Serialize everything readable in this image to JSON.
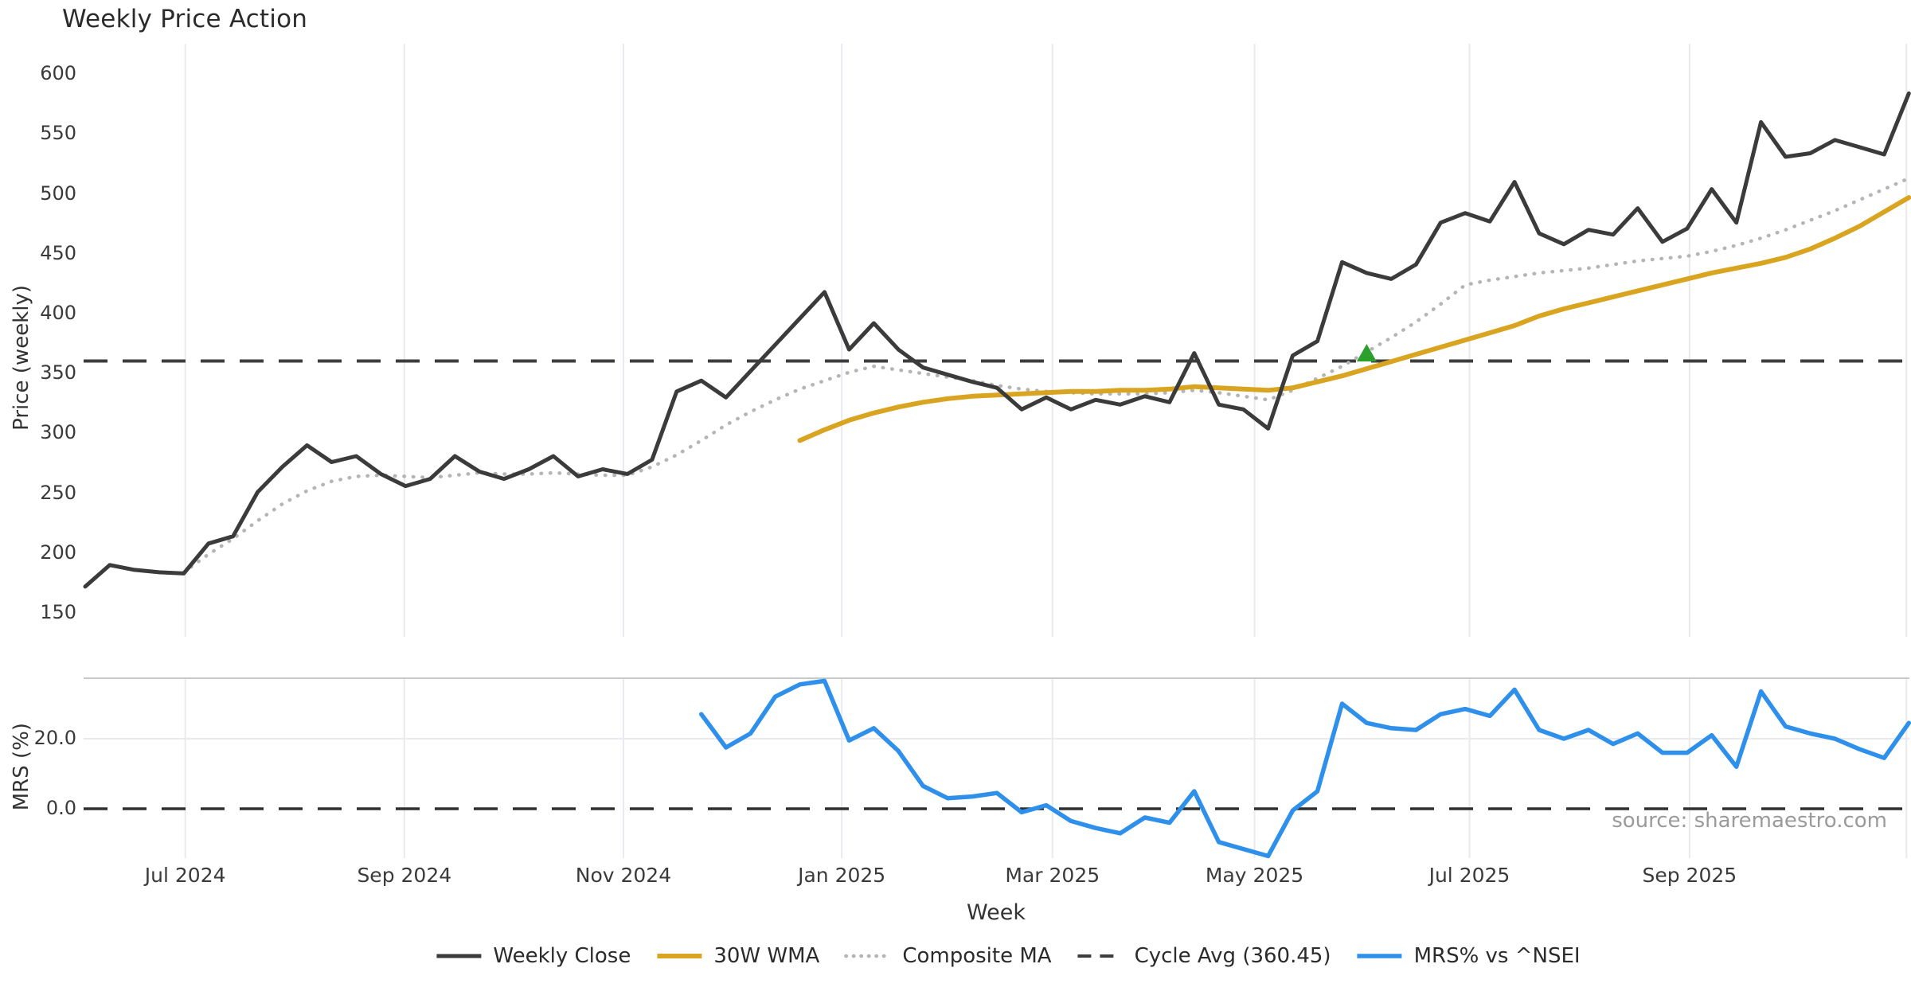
{
  "title": "Weekly Price Action",
  "xlabel": "Week",
  "source_note": "source: sharemaestro.com",
  "colors": {
    "close": "#3b3b3b",
    "wma": "#D9A521",
    "composite": "#b5b5b5",
    "cycle": "#3d3d3d",
    "mrs": "#2E90EA",
    "marker_green": "#2ca02c",
    "grid": "#e9e9f0",
    "spine": "#c9c9c9",
    "zero": "#2f2f2f"
  },
  "legend": {
    "items": [
      {
        "label": "Weekly Close",
        "style": "solid",
        "color_key": "close",
        "width": 5
      },
      {
        "label": "30W WMA",
        "style": "solid",
        "color_key": "wma",
        "width": 6
      },
      {
        "label": "Composite MA",
        "style": "dotted",
        "color_key": "composite",
        "width": 4.5
      },
      {
        "label": "Cycle Avg (360.45)",
        "style": "dashed",
        "color_key": "cycle",
        "width": 4
      },
      {
        "label": "MRS% vs ^NSEI",
        "style": "solid",
        "color_key": "mrs",
        "width": 5.5
      }
    ]
  },
  "chart_data": {
    "type": "line",
    "x_axis": {
      "label": "Week",
      "tick_weeks": [
        4.06,
        12.95,
        21.84,
        30.7,
        39.25,
        47.45,
        56.17,
        65.1,
        73.9
      ],
      "tick_labels": [
        "Jul 2024",
        "Sep 2024",
        "Nov 2024",
        "Jan 2025",
        "Mar 2025",
        "May 2025",
        "Jul 2025",
        "Sep 2025",
        ""
      ],
      "weeks_total": 75
    },
    "price_panel": {
      "ylabel": "Price (weekly)",
      "yticks": [
        600,
        550,
        500,
        450,
        400,
        350,
        300,
        250,
        200,
        150
      ],
      "ylim": [
        127,
        625
      ],
      "cycle_avg": 360.45,
      "series": [
        {
          "name": "Weekly Close",
          "style": "solid",
          "color_key": "close",
          "start_week": 0,
          "values": [
            172,
            190,
            186,
            184,
            183,
            208,
            214,
            251,
            272,
            290,
            276,
            281,
            266,
            256,
            262,
            281,
            268,
            262,
            270,
            281,
            264,
            270,
            266,
            278,
            335,
            344,
            330,
            352,
            374,
            396,
            418,
            370,
            392,
            370,
            355,
            349,
            343,
            338,
            320,
            330,
            320,
            328,
            324,
            331,
            326,
            367,
            324,
            320,
            304,
            365,
            377,
            443,
            434,
            429,
            441,
            476,
            484,
            477,
            510,
            467,
            458,
            470,
            466,
            488,
            460,
            471,
            504,
            476,
            560,
            531,
            534,
            545,
            539,
            533,
            584
          ]
        },
        {
          "name": "30W WMA",
          "style": "solid",
          "color_key": "wma",
          "start_week": 29,
          "values": [
            294,
            303,
            311,
            317,
            322,
            326,
            329,
            331,
            332,
            333,
            334,
            335,
            335,
            336,
            336,
            337,
            339,
            338,
            337,
            336,
            338,
            343,
            348,
            354,
            360,
            366,
            372,
            378,
            384,
            390,
            398,
            404,
            409,
            414,
            419,
            424,
            429,
            434,
            438,
            442,
            447,
            454,
            463,
            473,
            485,
            497
          ]
        },
        {
          "name": "Composite MA",
          "style": "dotted",
          "color_key": "composite",
          "start_week": 4,
          "values": [
            184,
            199,
            212,
            227,
            241,
            252,
            260,
            264,
            265,
            264,
            263,
            265,
            267,
            266,
            266,
            267,
            266,
            265,
            265,
            272,
            282,
            294,
            307,
            318,
            328,
            337,
            344,
            351,
            356,
            353,
            350,
            347,
            344,
            340,
            337,
            335,
            334,
            333,
            333,
            333,
            334,
            336,
            334,
            331,
            328,
            336,
            346,
            356,
            368,
            380,
            393,
            408,
            424,
            428,
            431,
            434,
            436,
            438,
            441,
            444,
            446,
            448,
            452,
            457,
            463,
            470,
            478,
            486,
            495,
            504,
            513
          ]
        }
      ],
      "marker": {
        "shape": "triangle-up",
        "color_key": "marker_green",
        "week": 52,
        "value": 366
      }
    },
    "mrs_panel": {
      "ylabel": "MRS (%)",
      "ytick_labels": [
        "20.0",
        "0.0"
      ],
      "ytick_values": [
        20,
        0
      ],
      "ylim": [
        -14.5,
        37.5
      ],
      "zero_line": 0,
      "series": [
        {
          "name": "MRS% vs ^NSEI",
          "style": "solid",
          "color_key": "mrs",
          "start_week": 25,
          "values": [
            27,
            17.5,
            21.5,
            32,
            35.5,
            36.5,
            19.5,
            23,
            16.5,
            6.5,
            3,
            3.5,
            4.5,
            -1,
            1,
            -3.5,
            -5.5,
            -7,
            -2.5,
            -4,
            5,
            -9.5,
            -11.5,
            -13.5,
            -0.5,
            5,
            30,
            24.5,
            23,
            22.5,
            27,
            28.5,
            26.5,
            34,
            22.5,
            20,
            22.5,
            18.5,
            21.5,
            16,
            16,
            21,
            12,
            33.5,
            23.5,
            21.5,
            20,
            17,
            14.5,
            24.5
          ]
        }
      ]
    }
  }
}
